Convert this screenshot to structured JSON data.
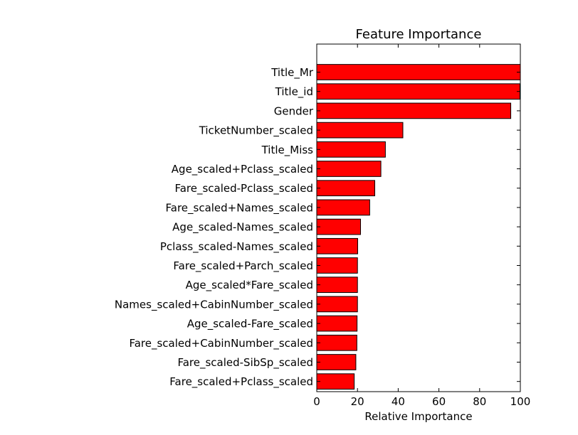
{
  "chart_data": {
    "type": "bar",
    "orientation": "horizontal",
    "title": "Feature Importance",
    "xlabel": "Relative Importance",
    "ylabel": "",
    "xlim": [
      0,
      100
    ],
    "xticks": [
      0,
      20,
      40,
      60,
      80,
      100
    ],
    "bar_color": "#ff0000",
    "categories": [
      "Title_Mr",
      "Title_id",
      "Gender",
      "TicketNumber_scaled",
      "Title_Miss",
      "Age_scaled+Pclass_scaled",
      "Fare_scaled-Pclass_scaled",
      "Fare_scaled+Names_scaled",
      "Age_scaled-Names_scaled",
      "Pclass_scaled-Names_scaled",
      "Fare_scaled+Parch_scaled",
      "Age_scaled*Fare_scaled",
      "Names_scaled+CabinNumber_scaled",
      "Age_scaled-Fare_scaled",
      "Fare_scaled+CabinNumber_scaled",
      "Fare_scaled-SibSp_scaled",
      "Fare_scaled+Pclass_scaled"
    ],
    "values": [
      100,
      99.8,
      95.3,
      42.3,
      33.7,
      31.5,
      28.5,
      26.0,
      21.5,
      20.1,
      20.0,
      20.0,
      20.0,
      19.8,
      19.7,
      19.2,
      18.4
    ]
  }
}
